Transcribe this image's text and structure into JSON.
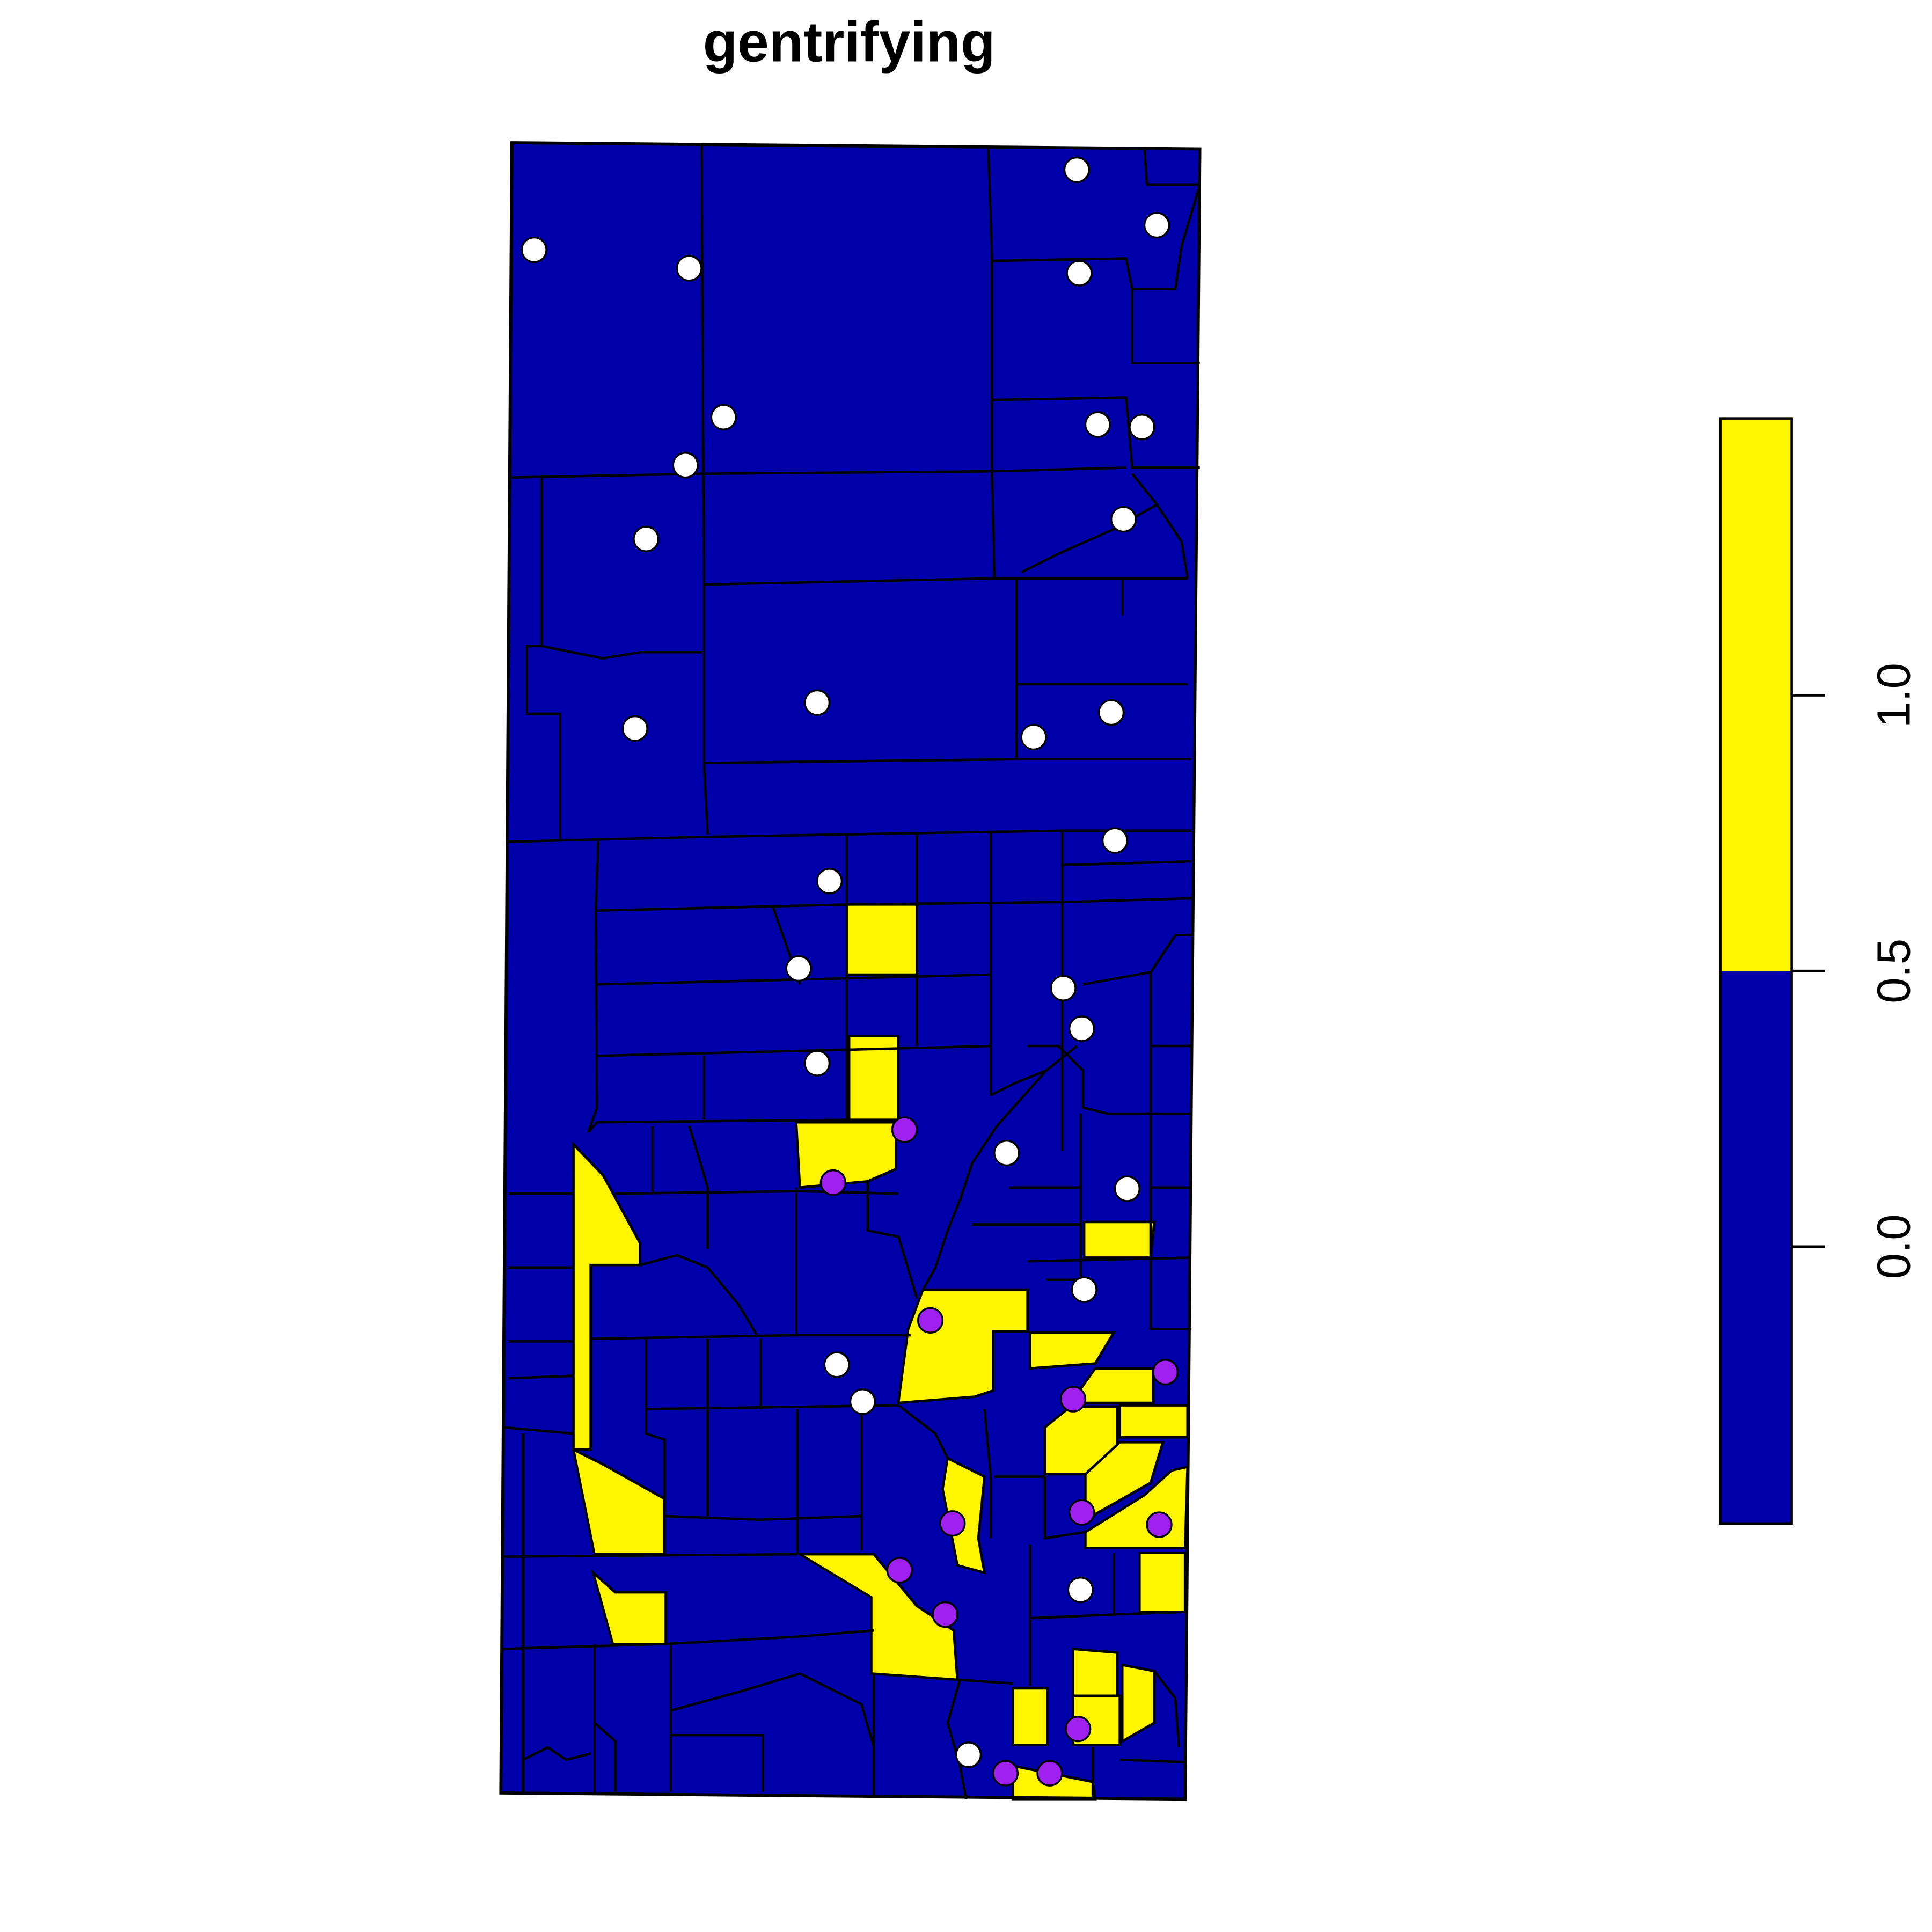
{
  "title": "gentrifying",
  "colors": {
    "low": "#0000AA",
    "high": "#FFF500",
    "border": "#000000",
    "point_gentrifying": "#A020F0",
    "point_other": "#FFFFFF"
  },
  "legend": {
    "ticks": [
      "0.0",
      "0.5",
      "1.0"
    ],
    "range": [
      -0.5,
      1.5
    ],
    "break": 0.5,
    "placement": "right"
  },
  "chart_data": {
    "type": "choropleth",
    "title": "gentrifying",
    "legend_classes": [
      {
        "range": [
          -0.5,
          0.5
        ],
        "color": "#0000AA"
      },
      {
        "range": [
          0.5,
          1.5
        ],
        "color": "#FFF500"
      }
    ],
    "point_classes": {
      "gentrifying": {
        "color": "#A020F0",
        "count": 14
      },
      "other": {
        "color": "#FFFFFF",
        "count": 30
      }
    }
  }
}
